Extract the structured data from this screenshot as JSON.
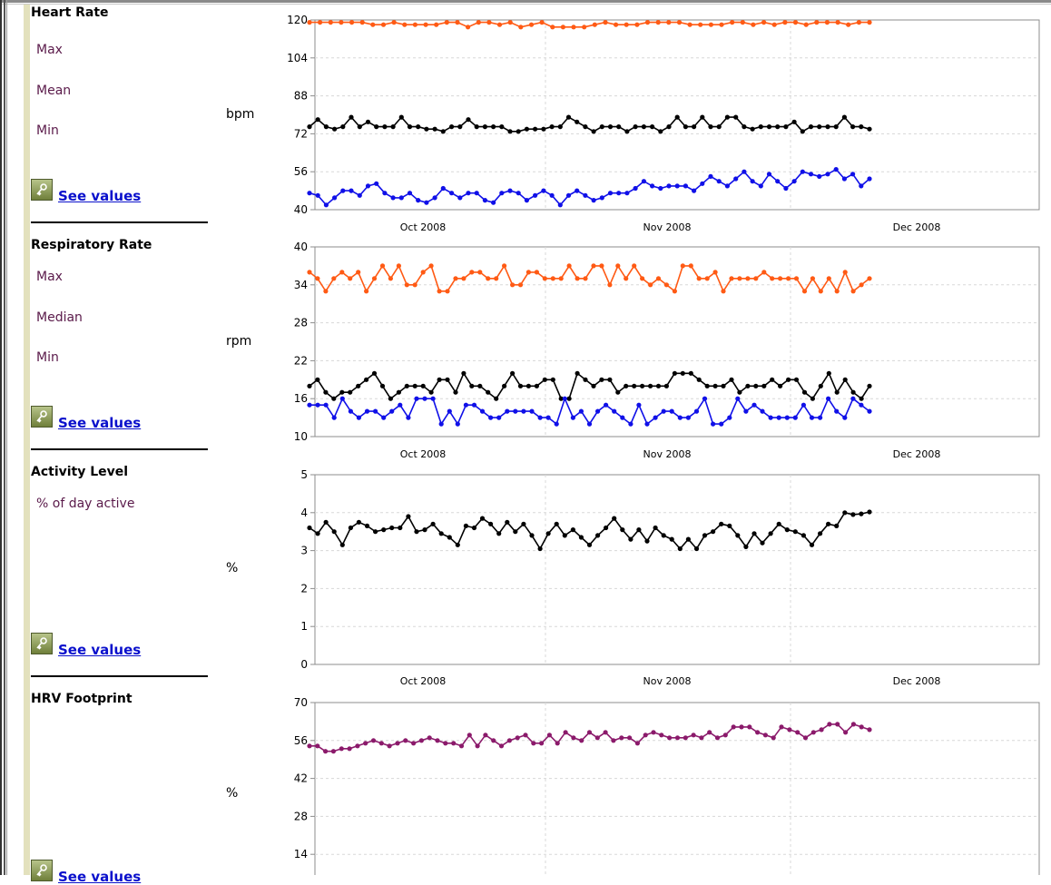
{
  "sections": [
    {
      "title": "Heart Rate",
      "legend": [
        "Max",
        "Mean",
        "Min"
      ],
      "see_values": "See values",
      "unit": "bpm"
    },
    {
      "title": "Respiratory Rate",
      "legend": [
        "Max",
        "Median",
        "Min"
      ],
      "see_values": "See values",
      "unit": "rpm"
    },
    {
      "title": "Activity Level",
      "legend": [
        "% of day active"
      ],
      "see_values": "See values",
      "unit": "%"
    },
    {
      "title": "HRV Footprint",
      "legend": [],
      "see_values": "See values",
      "unit": "%"
    }
  ],
  "colors": {
    "max": "#ff5a14",
    "mean": "#000000",
    "min": "#1010e8",
    "activity": "#000000",
    "hrv": "#8b1a6b"
  },
  "chart_data": [
    {
      "type": "line",
      "title": "Heart Rate",
      "ylabel": "bpm",
      "ylim": [
        40,
        120
      ],
      "yticks": [
        40,
        56,
        72,
        88,
        104,
        120
      ],
      "xlim": [
        "2008-09-15",
        "2008-12-15"
      ],
      "xticks": [
        "Oct 2008",
        "Nov 2008",
        "Dec 2008"
      ],
      "grid": true,
      "series": [
        {
          "name": "Max",
          "color": "#ff5a14",
          "values": [
            119,
            119,
            119,
            119,
            119,
            119,
            118,
            118,
            119,
            118,
            118,
            118,
            118,
            119,
            119,
            117,
            119,
            119,
            118,
            119,
            117,
            118,
            119,
            117,
            117,
            117,
            117,
            118,
            119,
            118,
            118,
            118,
            119,
            119,
            119,
            119,
            118,
            118,
            118,
            118,
            119,
            119,
            118,
            119,
            118,
            119,
            119,
            118,
            119,
            119,
            119,
            118,
            119,
            119
          ]
        },
        {
          "name": "Mean",
          "color": "#000000",
          "values": [
            75,
            78,
            75,
            74,
            75,
            79,
            75,
            77,
            75,
            75,
            75,
            79,
            75,
            75,
            74,
            74,
            73,
            75,
            75,
            78,
            75,
            75,
            75,
            75,
            73,
            73,
            74,
            74,
            74,
            75,
            75,
            79,
            77,
            75,
            73,
            75,
            75,
            75,
            73,
            75,
            75,
            75,
            73,
            75,
            79,
            75,
            75,
            79,
            75,
            75,
            79,
            79,
            75,
            74,
            75,
            75,
            75,
            75,
            77,
            73,
            75,
            75,
            75,
            75,
            79,
            75,
            75,
            74
          ]
        },
        {
          "name": "Min",
          "color": "#1010e8",
          "values": [
            47,
            46,
            42,
            45,
            48,
            48,
            46,
            50,
            51,
            47,
            45,
            45,
            47,
            44,
            43,
            45,
            49,
            47,
            45,
            47,
            47,
            44,
            43,
            47,
            48,
            47,
            44,
            46,
            48,
            46,
            42,
            46,
            48,
            46,
            44,
            45,
            47,
            47,
            47,
            49,
            52,
            50,
            49,
            50,
            50,
            50,
            48,
            51,
            54,
            52,
            50,
            53,
            56,
            52,
            50,
            55,
            52,
            49,
            52,
            56,
            55,
            54,
            55,
            57,
            53,
            55,
            50,
            53
          ]
        }
      ]
    },
    {
      "type": "line",
      "title": "Respiratory Rate",
      "ylabel": "rpm",
      "ylim": [
        10,
        40
      ],
      "yticks": [
        10,
        16,
        22,
        28,
        34,
        40
      ],
      "xlim": [
        "2008-09-15",
        "2008-12-15"
      ],
      "xticks": [
        "Oct 2008",
        "Nov 2008",
        "Dec 2008"
      ],
      "grid": true,
      "series": [
        {
          "name": "Max",
          "color": "#ff5a14",
          "values": [
            36,
            35,
            33,
            35,
            36,
            35,
            36,
            33,
            35,
            37,
            35,
            37,
            34,
            34,
            36,
            37,
            33,
            33,
            35,
            35,
            36,
            36,
            35,
            35,
            37,
            34,
            34,
            36,
            36,
            35,
            35,
            35,
            37,
            35,
            35,
            37,
            37,
            34,
            37,
            35,
            37,
            35,
            34,
            35,
            34,
            33,
            37,
            37,
            35,
            35,
            36,
            33,
            35,
            35,
            35,
            35,
            36,
            35,
            35,
            35,
            35,
            33,
            35,
            33,
            35,
            33,
            36,
            33,
            34,
            35
          ]
        },
        {
          "name": "Median",
          "color": "#000000",
          "values": [
            18,
            19,
            17,
            16,
            17,
            17,
            18,
            19,
            20,
            18,
            16,
            17,
            18,
            18,
            18,
            17,
            19,
            19,
            17,
            20,
            18,
            18,
            17,
            16,
            18,
            20,
            18,
            18,
            18,
            19,
            19,
            16,
            16,
            20,
            19,
            18,
            19,
            19,
            17,
            18,
            18,
            18,
            18,
            18,
            18,
            20,
            20,
            20,
            19,
            18,
            18,
            18,
            19,
            17,
            18,
            18,
            18,
            19,
            18,
            19,
            19,
            17,
            16,
            18,
            20,
            17,
            19,
            17,
            16,
            18
          ]
        },
        {
          "name": "Min",
          "color": "#1010e8",
          "values": [
            15,
            15,
            15,
            13,
            16,
            14,
            13,
            14,
            14,
            13,
            14,
            15,
            13,
            16,
            16,
            16,
            12,
            14,
            12,
            15,
            15,
            14,
            13,
            13,
            14,
            14,
            14,
            14,
            13,
            13,
            12,
            16,
            13,
            14,
            12,
            14,
            15,
            14,
            13,
            12,
            15,
            12,
            13,
            14,
            14,
            13,
            13,
            14,
            16,
            12,
            12,
            13,
            16,
            14,
            15,
            14,
            13,
            13,
            13,
            13,
            15,
            13,
            13,
            16,
            14,
            13,
            16,
            15,
            14
          ]
        }
      ]
    },
    {
      "type": "line",
      "title": "Activity Level",
      "ylabel": "%",
      "ylim": [
        0,
        5
      ],
      "yticks": [
        0,
        1,
        2,
        3,
        4,
        5
      ],
      "xlim": [
        "2008-09-15",
        "2008-12-15"
      ],
      "xticks": [
        "Oct 2008",
        "Nov 2008",
        "Dec 2008"
      ],
      "grid": true,
      "series": [
        {
          "name": "% of day active",
          "color": "#000000",
          "values": [
            3.6,
            3.45,
            3.75,
            3.5,
            3.15,
            3.6,
            3.75,
            3.65,
            3.5,
            3.55,
            3.6,
            3.6,
            3.9,
            3.5,
            3.55,
            3.7,
            3.45,
            3.35,
            3.15,
            3.65,
            3.6,
            3.85,
            3.7,
            3.45,
            3.75,
            3.5,
            3.7,
            3.4,
            3.05,
            3.45,
            3.7,
            3.4,
            3.55,
            3.35,
            3.15,
            3.4,
            3.6,
            3.85,
            3.55,
            3.3,
            3.55,
            3.25,
            3.6,
            3.4,
            3.3,
            3.05,
            3.3,
            3.05,
            3.4,
            3.5,
            3.7,
            3.65,
            3.4,
            3.1,
            3.45,
            3.2,
            3.45,
            3.7,
            3.55,
            3.5,
            3.4,
            3.15,
            3.45,
            3.7,
            3.65,
            4.0,
            3.95,
            3.97,
            4.02
          ]
        }
      ]
    },
    {
      "type": "line",
      "title": "HRV Footprint",
      "ylabel": "%",
      "ylim": [
        0,
        70
      ],
      "yticks": [
        14,
        28,
        42,
        56,
        70
      ],
      "xlim": [
        "2008-09-15",
        "2008-12-15"
      ],
      "grid": true,
      "series": [
        {
          "name": "HRV Footprint",
          "color": "#8b1a6b",
          "values": [
            54,
            54,
            52,
            52,
            53,
            53,
            54,
            55,
            56,
            55,
            54,
            55,
            56,
            55,
            56,
            57,
            56,
            55,
            55,
            54,
            58,
            54,
            58,
            56,
            54,
            56,
            57,
            58,
            55,
            55,
            58,
            55,
            59,
            57,
            56,
            59,
            57,
            59,
            56,
            57,
            57,
            55,
            58,
            59,
            58,
            57,
            57,
            57,
            58,
            57,
            59,
            57,
            58,
            61,
            61,
            61,
            59,
            58,
            57,
            61,
            60,
            59,
            57,
            59,
            60,
            62,
            62,
            59,
            62,
            61,
            60
          ]
        }
      ]
    }
  ]
}
